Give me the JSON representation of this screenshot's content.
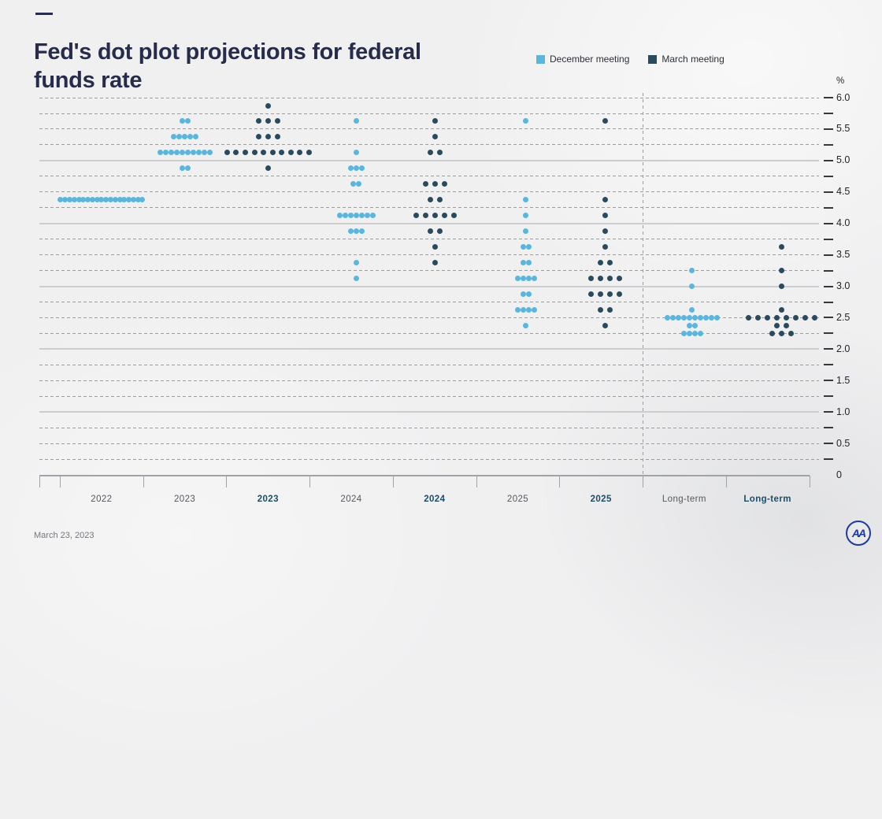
{
  "footer": {
    "date": "March 23, 2023",
    "logo_text": "AA"
  },
  "chart_data": {
    "type": "scatter",
    "title": "Fed's dot plot projections for federal funds rate",
    "xlabel": "",
    "ylabel": "%",
    "ylim": [
      0,
      6
    ],
    "grid": "on",
    "legend_position": "top",
    "legend": [
      {
        "label": "December meeting",
        "color": "#5cb6db"
      },
      {
        "label": "March meeting",
        "color": "#2a4a5e"
      }
    ],
    "y_axis": {
      "unit": "%",
      "minor_step": 0.25,
      "solid_lines": [
        1,
        2,
        3,
        4,
        5
      ],
      "ticks": [
        {
          "value": 6.0,
          "label": "6.0"
        },
        {
          "value": 5.5,
          "label": "5.5"
        },
        {
          "value": 5.0,
          "label": "5.0"
        },
        {
          "value": 4.5,
          "label": "4.5"
        },
        {
          "value": 4.0,
          "label": "4.0"
        },
        {
          "value": 3.5,
          "label": "3.5"
        },
        {
          "value": 3.0,
          "label": "3.0"
        },
        {
          "value": 2.5,
          "label": "2.5"
        },
        {
          "value": 2.0,
          "label": "2.0"
        },
        {
          "value": 1.5,
          "label": "1.5"
        },
        {
          "value": 1.0,
          "label": "1.0"
        },
        {
          "value": 0.5,
          "label": "0.5"
        },
        {
          "value": 0,
          "label": "0"
        }
      ]
    },
    "separator_after_column": 7,
    "columns": [
      {
        "label": "2022",
        "series": "December meeting",
        "bold": false,
        "dots": [
          {
            "rate": 4.375,
            "count": 19
          }
        ]
      },
      {
        "label": "2023",
        "series": "December meeting",
        "bold": false,
        "dots": [
          {
            "rate": 5.625,
            "count": 2
          },
          {
            "rate": 5.375,
            "count": 5
          },
          {
            "rate": 5.125,
            "count": 10
          },
          {
            "rate": 4.875,
            "count": 2
          }
        ]
      },
      {
        "label": "2023",
        "series": "March meeting",
        "bold": true,
        "dots": [
          {
            "rate": 5.875,
            "count": 1
          },
          {
            "rate": 5.625,
            "count": 3
          },
          {
            "rate": 5.375,
            "count": 3
          },
          {
            "rate": 5.125,
            "count": 10
          },
          {
            "rate": 4.875,
            "count": 1
          }
        ]
      },
      {
        "label": "2024",
        "series": "December meeting",
        "bold": false,
        "dots": [
          {
            "rate": 5.625,
            "count": 1
          },
          {
            "rate": 5.125,
            "count": 1
          },
          {
            "rate": 4.875,
            "count": 3
          },
          {
            "rate": 4.625,
            "count": 2
          },
          {
            "rate": 4.125,
            "count": 7
          },
          {
            "rate": 3.875,
            "count": 3
          },
          {
            "rate": 3.375,
            "count": 1
          },
          {
            "rate": 3.125,
            "count": 1
          }
        ]
      },
      {
        "label": "2024",
        "series": "March meeting",
        "bold": true,
        "dots": [
          {
            "rate": 5.625,
            "count": 1
          },
          {
            "rate": 5.375,
            "count": 1
          },
          {
            "rate": 5.125,
            "count": 2
          },
          {
            "rate": 4.625,
            "count": 3
          },
          {
            "rate": 4.375,
            "count": 2
          },
          {
            "rate": 4.125,
            "count": 5
          },
          {
            "rate": 3.875,
            "count": 2
          },
          {
            "rate": 3.625,
            "count": 1
          },
          {
            "rate": 3.375,
            "count": 1
          }
        ]
      },
      {
        "label": "2025",
        "series": "December meeting",
        "bold": false,
        "dots": [
          {
            "rate": 5.625,
            "count": 1
          },
          {
            "rate": 4.375,
            "count": 1
          },
          {
            "rate": 4.125,
            "count": 1
          },
          {
            "rate": 3.875,
            "count": 1
          },
          {
            "rate": 3.625,
            "count": 2
          },
          {
            "rate": 3.375,
            "count": 2
          },
          {
            "rate": 3.125,
            "count": 4
          },
          {
            "rate": 2.875,
            "count": 2
          },
          {
            "rate": 2.625,
            "count": 4
          },
          {
            "rate": 2.375,
            "count": 1
          }
        ]
      },
      {
        "label": "2025",
        "series": "March meeting",
        "bold": true,
        "dots": [
          {
            "rate": 5.625,
            "count": 1
          },
          {
            "rate": 4.375,
            "count": 1
          },
          {
            "rate": 4.125,
            "count": 1
          },
          {
            "rate": 3.875,
            "count": 1
          },
          {
            "rate": 3.625,
            "count": 1
          },
          {
            "rate": 3.375,
            "count": 2
          },
          {
            "rate": 3.125,
            "count": 4
          },
          {
            "rate": 2.875,
            "count": 4
          },
          {
            "rate": 2.625,
            "count": 2
          },
          {
            "rate": 2.375,
            "count": 1
          }
        ]
      },
      {
        "label": "Long-term",
        "series": "December meeting",
        "bold": false,
        "dots": [
          {
            "rate": 3.25,
            "count": 1
          },
          {
            "rate": 3.0,
            "count": 1
          },
          {
            "rate": 2.625,
            "count": 1
          },
          {
            "rate": 2.5,
            "count": 10
          },
          {
            "rate": 2.375,
            "count": 2
          },
          {
            "rate": 2.25,
            "count": 4
          }
        ]
      },
      {
        "label": "Long-term",
        "series": "March meeting",
        "bold": true,
        "dots": [
          {
            "rate": 3.625,
            "count": 1
          },
          {
            "rate": 3.25,
            "count": 1
          },
          {
            "rate": 3.0,
            "count": 1
          },
          {
            "rate": 2.625,
            "count": 1
          },
          {
            "rate": 2.5,
            "count": 8
          },
          {
            "rate": 2.375,
            "count": 2
          },
          {
            "rate": 2.25,
            "count": 3
          }
        ]
      }
    ]
  }
}
